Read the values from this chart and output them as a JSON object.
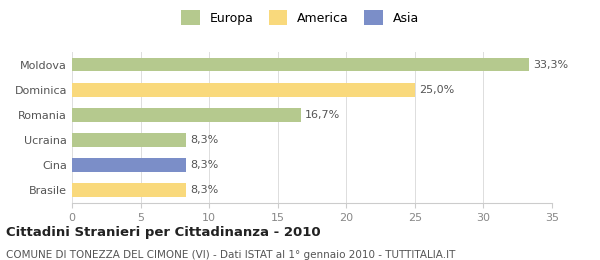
{
  "categories": [
    "Brasile",
    "Cina",
    "Ucraina",
    "Romania",
    "Dominica",
    "Moldova"
  ],
  "values": [
    8.3,
    8.3,
    8.3,
    16.7,
    25.0,
    33.3
  ],
  "colors": [
    "#f9d97c",
    "#7b8ec8",
    "#b5c98e",
    "#b5c98e",
    "#f9d97c",
    "#b5c98e"
  ],
  "labels": [
    "8,3%",
    "8,3%",
    "8,3%",
    "16,7%",
    "25,0%",
    "33,3%"
  ],
  "xlim": [
    0,
    35
  ],
  "xticks": [
    0,
    5,
    10,
    15,
    20,
    25,
    30,
    35
  ],
  "title": "Cittadini Stranieri per Cittadinanza - 2010",
  "subtitle": "COMUNE DI TONEZZA DEL CIMONE (VI) - Dati ISTAT al 1° gennaio 2010 - TUTTITALIA.IT",
  "legend_labels": [
    "Europa",
    "America",
    "Asia"
  ],
  "legend_colors": [
    "#b5c98e",
    "#f9d97c",
    "#7b8ec8"
  ],
  "background_color": "#ffffff",
  "bar_height": 0.55,
  "title_fontsize": 9.5,
  "subtitle_fontsize": 7.5,
  "label_fontsize": 8,
  "tick_fontsize": 8,
  "legend_fontsize": 9
}
